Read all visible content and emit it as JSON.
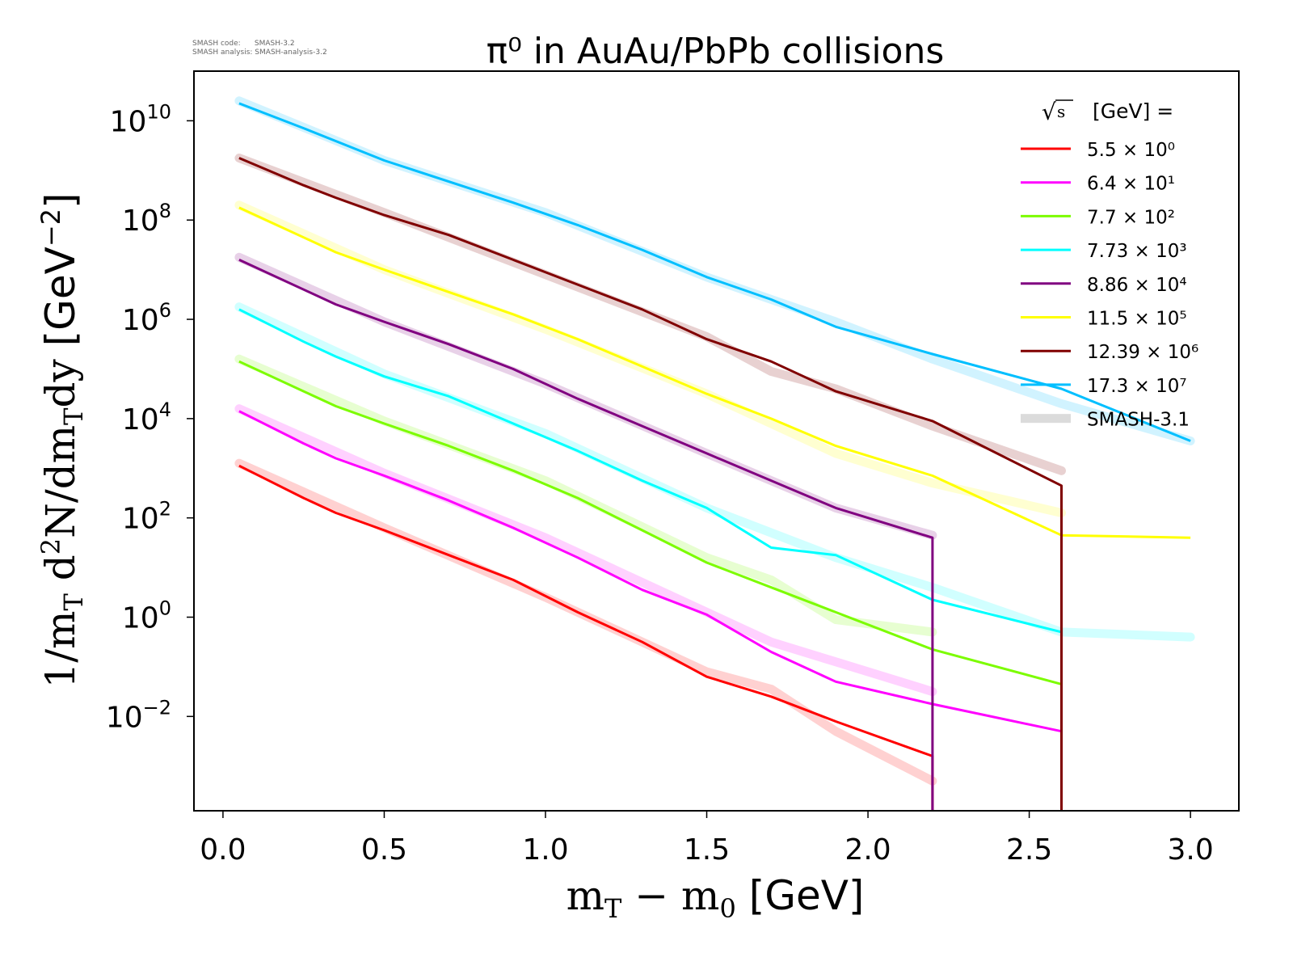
{
  "meta": {
    "code_line": "SMASH code:      SMASH-3.2",
    "analysis_line": "SMASH analysis: SMASH-analysis-3.2"
  },
  "chart_data": {
    "type": "line",
    "title": "π⁰ in AuAu/PbPb collisions",
    "xlabel": "mT − m0 [GeV]",
    "ylabel": "1/mT d²N/dmTdy [GeV⁻²]",
    "x_scale": "linear",
    "y_scale": "log",
    "xlim": [
      -0.09,
      3.15
    ],
    "ylim_log10": [
      -3.9,
      11.0
    ],
    "x_ticks": [
      0.0,
      0.5,
      1.0,
      1.5,
      2.0,
      2.5,
      3.0
    ],
    "x_tick_labels": [
      "0.0",
      "0.5",
      "1.0",
      "1.5",
      "2.0",
      "2.5",
      "3.0"
    ],
    "y_ticks_log10": [
      -2,
      0,
      2,
      4,
      6,
      8,
      10
    ],
    "grid": false,
    "legend": {
      "placement": "top-right",
      "title": "√s  [GeV] =",
      "labels": [
        "5.5 × 10⁰",
        "6.4 × 10¹",
        "7.7 × 10²",
        "7.73 × 10³",
        "8.86 × 10⁴",
        "11.5 × 10⁵",
        "12.39 × 10⁶",
        "17.3 × 10⁷",
        "SMASH-3.1"
      ]
    },
    "reference_label": "SMASH-3.1",
    "series": [
      {
        "color": "#ff0000",
        "x": [
          0.05,
          0.25,
          0.35,
          0.5,
          0.7,
          0.9,
          1.1,
          1.3,
          1.5,
          1.7,
          1.9,
          2.2,
          2.2
        ],
        "log10y": [
          3.05,
          2.4,
          2.1,
          1.75,
          1.25,
          0.75,
          0.1,
          -0.5,
          -1.2,
          -1.6,
          -2.1,
          -2.8,
          -3.9
        ],
        "ref_x": [
          0.05,
          0.5,
          1.0,
          1.5,
          1.7,
          1.9,
          2.2
        ],
        "ref_log10y": [
          3.1,
          1.8,
          0.4,
          -1.1,
          -1.45,
          -2.3,
          -3.3
        ]
      },
      {
        "color": "#ff00ff",
        "x": [
          0.05,
          0.25,
          0.35,
          0.5,
          0.7,
          0.9,
          1.1,
          1.3,
          1.5,
          1.7,
          1.9,
          2.2,
          2.6
        ],
        "log10y": [
          4.15,
          3.5,
          3.2,
          2.85,
          2.35,
          1.8,
          1.2,
          0.55,
          0.05,
          -0.7,
          -1.3,
          -1.75,
          -2.3
        ],
        "ref_x": [
          0.05,
          0.5,
          1.0,
          1.5,
          1.7,
          1.9,
          2.2
        ],
        "ref_log10y": [
          4.2,
          2.9,
          1.6,
          0.1,
          -0.5,
          -0.9,
          -1.5
        ]
      },
      {
        "color": "#7cfc00",
        "x": [
          0.05,
          0.25,
          0.35,
          0.5,
          0.7,
          0.9,
          1.1,
          1.3,
          1.5,
          1.7,
          1.9,
          2.2,
          2.6
        ],
        "log10y": [
          5.15,
          4.55,
          4.25,
          3.9,
          3.45,
          2.95,
          2.4,
          1.75,
          1.1,
          0.6,
          0.1,
          -0.65,
          -1.35
        ],
        "ref_x": [
          0.05,
          0.5,
          1.0,
          1.5,
          1.7,
          1.9,
          2.2
        ],
        "ref_log10y": [
          5.2,
          3.95,
          2.75,
          1.2,
          0.75,
          -0.05,
          -0.3
        ]
      },
      {
        "color": "#00ffff",
        "x": [
          0.05,
          0.25,
          0.35,
          0.5,
          0.7,
          0.9,
          1.1,
          1.3,
          1.5,
          1.7,
          1.9,
          2.2,
          2.6
        ],
        "log10y": [
          6.2,
          5.55,
          5.25,
          4.85,
          4.45,
          3.9,
          3.35,
          2.75,
          2.2,
          1.4,
          1.25,
          0.35,
          -0.3
        ],
        "ref_x": [
          0.05,
          0.5,
          1.0,
          1.5,
          1.9,
          2.2,
          2.6,
          3.0
        ],
        "ref_log10y": [
          6.25,
          4.9,
          3.7,
          2.2,
          1.2,
          0.6,
          -0.3,
          -0.4
        ]
      },
      {
        "color": "#800080",
        "x": [
          0.05,
          0.25,
          0.35,
          0.5,
          0.7,
          0.9,
          1.1,
          1.3,
          1.5,
          1.7,
          1.9,
          2.2,
          2.2
        ],
        "log10y": [
          7.2,
          6.6,
          6.3,
          5.95,
          5.5,
          5.0,
          4.4,
          3.85,
          3.3,
          2.75,
          2.2,
          1.6,
          -3.9
        ],
        "ref_x": [
          0.05,
          0.5,
          1.0,
          1.5,
          1.9,
          2.2
        ],
        "ref_log10y": [
          7.25,
          5.95,
          4.7,
          3.3,
          2.2,
          1.65
        ]
      },
      {
        "color": "#ffff00",
        "x": [
          0.05,
          0.25,
          0.35,
          0.5,
          0.7,
          0.9,
          1.1,
          1.3,
          1.5,
          1.7,
          1.9,
          2.2,
          2.6,
          3.0
        ],
        "log10y": [
          8.25,
          7.65,
          7.35,
          7.0,
          6.55,
          6.1,
          5.6,
          5.05,
          4.5,
          4.0,
          3.45,
          2.85,
          1.65,
          1.6
        ],
        "ref_x": [
          0.05,
          0.5,
          1.0,
          1.5,
          1.9,
          2.2,
          2.6
        ],
        "ref_log10y": [
          8.3,
          7.0,
          5.8,
          4.5,
          3.3,
          2.7,
          2.1
        ]
      },
      {
        "color": "#800000",
        "x": [
          0.05,
          0.25,
          0.35,
          0.5,
          0.7,
          0.9,
          1.1,
          1.3,
          1.5,
          1.7,
          1.9,
          2.2,
          2.6,
          2.6
        ],
        "log10y": [
          9.25,
          8.7,
          8.45,
          8.1,
          7.7,
          7.2,
          6.7,
          6.2,
          5.6,
          5.15,
          4.55,
          3.95,
          2.65,
          -3.9
        ],
        "ref_x": [
          0.05,
          0.5,
          1.0,
          1.5,
          1.7,
          1.9,
          2.2,
          2.6
        ],
        "ref_log10y": [
          9.25,
          8.15,
          6.9,
          5.65,
          4.95,
          4.6,
          3.85,
          2.95
        ]
      },
      {
        "color": "#00bfff",
        "x": [
          0.05,
          0.25,
          0.5,
          0.9,
          1.1,
          1.3,
          1.5,
          1.7,
          1.9,
          2.2,
          2.6,
          3.0
        ],
        "log10y": [
          10.35,
          9.85,
          9.2,
          8.35,
          7.9,
          7.4,
          6.85,
          6.4,
          5.85,
          5.3,
          4.6,
          3.55
        ],
        "ref_x": [
          0.05,
          0.5,
          1.0,
          1.5,
          1.9,
          2.2,
          2.6,
          3.0
        ],
        "ref_log10y": [
          10.4,
          9.2,
          8.15,
          6.85,
          5.95,
          5.2,
          4.3,
          3.55
        ]
      }
    ]
  }
}
